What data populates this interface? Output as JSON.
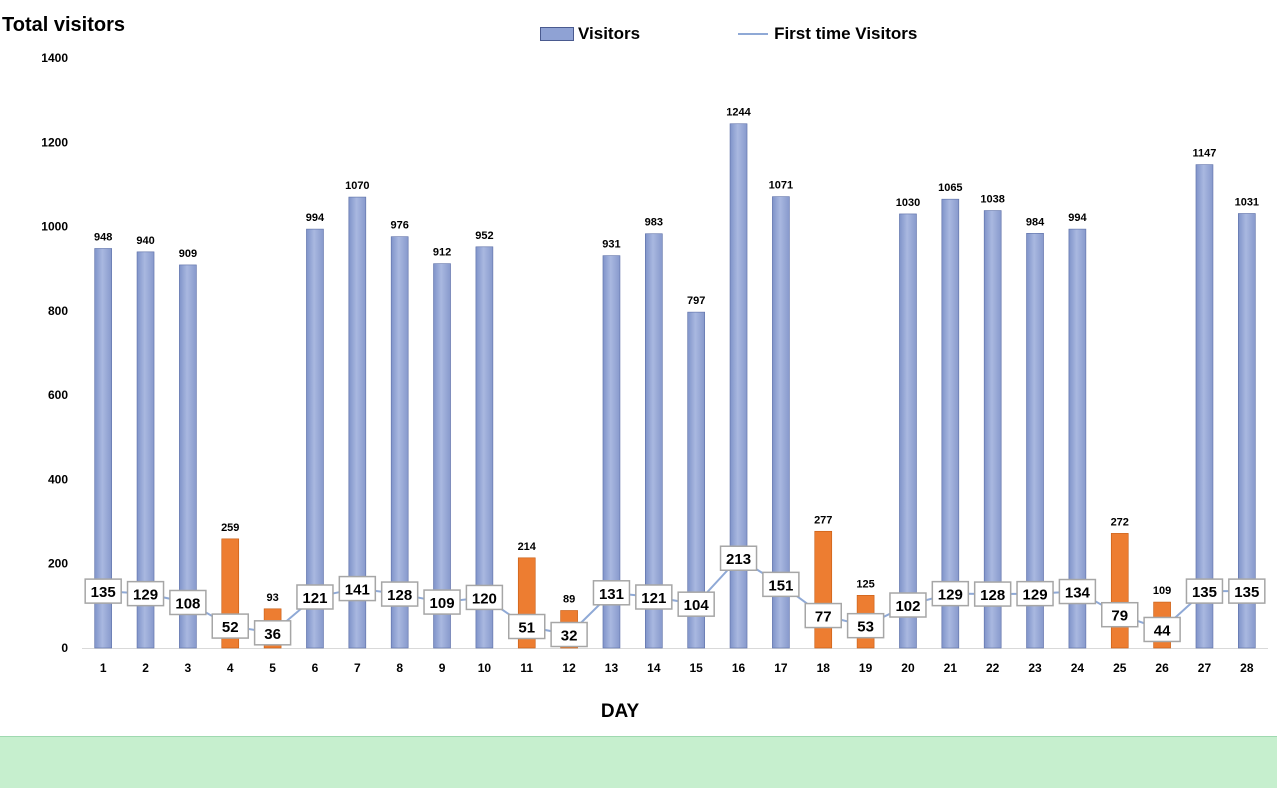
{
  "chart_data": {
    "type": "bar",
    "title": "Total visitors",
    "xlabel": "DAY",
    "ylabel": "",
    "ylim": [
      0,
      1400
    ],
    "yticks": [
      0,
      200,
      400,
      600,
      800,
      1000,
      1200,
      1400
    ],
    "categories": [
      "1",
      "2",
      "3",
      "4",
      "5",
      "6",
      "7",
      "8",
      "9",
      "10",
      "11",
      "12",
      "13",
      "14",
      "15",
      "16",
      "17",
      "18",
      "19",
      "20",
      "21",
      "22",
      "23",
      "24",
      "25",
      "26",
      "27",
      "28"
    ],
    "series": [
      {
        "name": "Visitors",
        "type": "bar",
        "values": [
          948,
          940,
          909,
          259,
          93,
          994,
          1070,
          976,
          912,
          952,
          214,
          89,
          931,
          983,
          797,
          1244,
          1071,
          277,
          125,
          1030,
          1065,
          1038,
          984,
          994,
          272,
          109,
          1147,
          1031
        ],
        "highlighted_days": [
          "4",
          "5",
          "11",
          "12",
          "18",
          "19",
          "25",
          "26"
        ]
      },
      {
        "name": "First time Visitors",
        "type": "line",
        "values": [
          135,
          129,
          108,
          52,
          36,
          121,
          141,
          128,
          109,
          120,
          51,
          32,
          131,
          121,
          104,
          213,
          151,
          77,
          53,
          102,
          129,
          128,
          129,
          134,
          79,
          44,
          135,
          135
        ]
      }
    ],
    "grid": false,
    "legend_position": "top-center",
    "colors": {
      "bar": "#8fa2d4",
      "bar_highlight": "#ed7d31",
      "line": "#8fa9d6",
      "axis": "#d9d9d9"
    }
  }
}
